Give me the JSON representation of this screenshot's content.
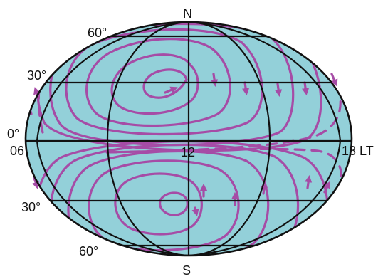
{
  "diagram": {
    "colors": {
      "ocean": "#93d0d9",
      "grid": "#111111",
      "flow": "#a64ca6",
      "label": "#111111"
    },
    "labels": {
      "north": "N",
      "south": "S",
      "lat60_north": "60°",
      "lat30_north": "30°",
      "equator": "0°",
      "lat30_south": "30°",
      "lat60_south": "60°",
      "lt06": "06",
      "lt12": "12",
      "lt18": "18 LT"
    }
  }
}
